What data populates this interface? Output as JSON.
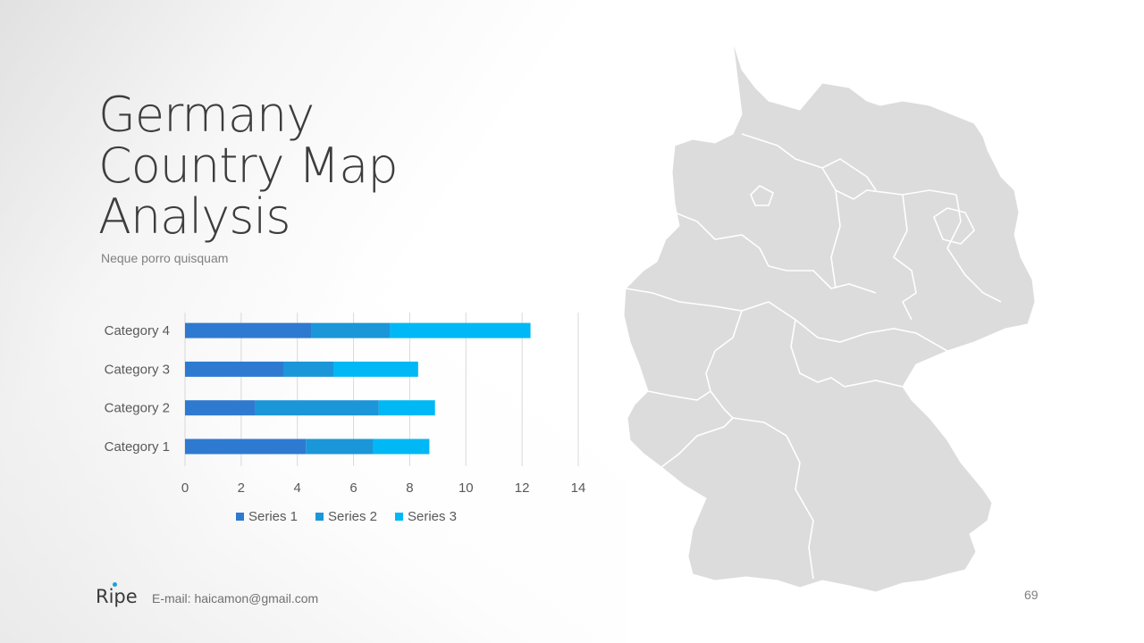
{
  "slide": {
    "title_lines": [
      "Germany",
      "Country  Map",
      "Analysis"
    ],
    "subtitle": "Neque porro quisquam",
    "footer": {
      "logo": "Ripe",
      "email": "E-mail: haicamon@gmail.com"
    },
    "page_number": "69",
    "map_icon": "germany-states-map"
  },
  "colors": {
    "series_1": "#2e7ad1",
    "series_2": "#1b96d9",
    "series_3": "#00b8f5",
    "map_fill": "#dcdcdc",
    "map_border": "#ffffff"
  },
  "chart_data": {
    "type": "bar",
    "orientation": "horizontal",
    "stacked": true,
    "categories": [
      "Category 1",
      "Category 2",
      "Category 3",
      "Category 4"
    ],
    "series": [
      {
        "name": "Series 1",
        "values": [
          4.3,
          2.5,
          3.5,
          4.5
        ]
      },
      {
        "name": "Series 2",
        "values": [
          2.4,
          4.4,
          1.8,
          2.8
        ]
      },
      {
        "name": "Series 3",
        "values": [
          2.0,
          2.0,
          3.0,
          5.0
        ]
      }
    ],
    "xlim": [
      0,
      14
    ],
    "xticks": [
      0,
      2,
      4,
      6,
      8,
      10,
      12,
      14
    ],
    "grid": "vertical",
    "legend": "bottom"
  }
}
